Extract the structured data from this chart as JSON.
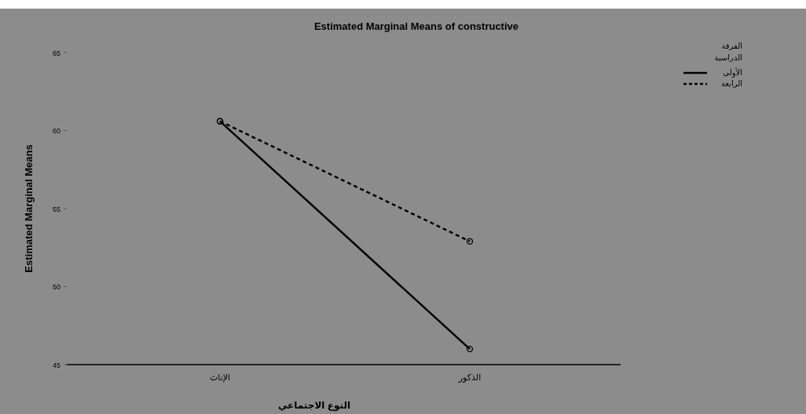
{
  "chart_data": {
    "type": "line",
    "title": "Estimated Marginal Means of constructive",
    "xlabel": "النوع الاجتماعي",
    "ylabel": "Estimated Marginal Means",
    "legend_title": "الفرقة الدراسية",
    "categories": [
      "الإناث",
      "الذكور"
    ],
    "series": [
      {
        "name": "الأولى",
        "color": "#000000",
        "line_style": "solid",
        "values": [
          60.6,
          46.0
        ]
      },
      {
        "name": "الرابعة",
        "color": "#000000",
        "line_style": "dashed",
        "values": [
          60.6,
          52.9
        ]
      }
    ],
    "ylim": [
      45,
      65
    ],
    "yticks": [
      45,
      50,
      55,
      60,
      65
    ],
    "grid": false,
    "legend": "top right",
    "marker": "circle"
  }
}
